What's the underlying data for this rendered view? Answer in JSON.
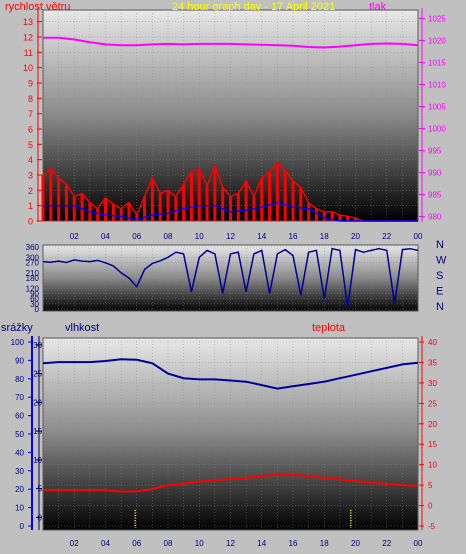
{
  "chart_data": [
    {
      "type": "line",
      "title": "24 hour graph day - 17 April 2021",
      "left_axis_label": "rychlost větru",
      "right_axis_label": "tlak",
      "x_tick_labels": [
        "02",
        "04",
        "06",
        "08",
        "10",
        "12",
        "14",
        "16",
        "18",
        "20",
        "22",
        "00"
      ],
      "left_ticks": [
        0,
        1,
        2,
        3,
        4,
        5,
        6,
        7,
        8,
        9,
        10,
        11,
        12,
        13
      ],
      "right_ticks": [
        980,
        985,
        990,
        995,
        1000,
        1005,
        1010,
        1015,
        1020,
        1025
      ],
      "left_ylim": [
        0,
        13.5
      ],
      "right_ylim": [
        979,
        1026
      ],
      "x_range_hours": [
        0,
        24
      ],
      "grid": true,
      "colors": {
        "pressure": "#ff00ff",
        "gust": "#ff0000",
        "avg": "#0000ff",
        "left_axis": "#ff0000",
        "right_axis": "#ff00ff",
        "title": "#ffff00"
      },
      "series": [
        {
          "key": "pressure",
          "x": [
            0,
            1,
            2,
            3,
            4,
            5,
            6,
            7,
            8,
            9,
            10,
            11,
            12,
            13,
            14,
            15,
            16,
            17,
            18,
            19,
            20,
            21,
            22,
            23,
            24
          ],
          "values": [
            1020.6,
            1020.6,
            1020.2,
            1019.6,
            1019.1,
            1018.9,
            1018.9,
            1019.1,
            1019.2,
            1019.1,
            1019.2,
            1019.2,
            1019.2,
            1019.1,
            1019.0,
            1018.9,
            1018.8,
            1018.5,
            1018.4,
            1018.6,
            1018.9,
            1019.2,
            1019.3,
            1019.2,
            1018.9
          ]
        },
        {
          "key": "gust",
          "x": [
            0,
            0.5,
            1,
            1.5,
            2,
            2.5,
            3,
            3.5,
            4,
            4.5,
            5,
            5.5,
            6,
            6.5,
            7,
            7.5,
            8,
            8.5,
            9,
            9.5,
            10,
            10.5,
            11,
            11.5,
            12,
            12.5,
            13,
            13.5,
            14,
            14.5,
            15,
            15.5,
            16,
            16.5,
            17,
            17.5,
            18,
            18.5,
            19,
            19.5,
            20,
            20.5,
            21,
            21.5,
            22,
            22.5,
            23,
            23.5,
            24
          ],
          "values": [
            3,
            3.4,
            2.8,
            2.4,
            1.6,
            1.8,
            1.2,
            0.8,
            1.5,
            1.1,
            0.8,
            1.2,
            0.4,
            1.6,
            2.8,
            1.8,
            2,
            1.6,
            2.4,
            3.2,
            3.4,
            2.3,
            3.6,
            2.2,
            1.6,
            1.8,
            2.6,
            1.6,
            2.8,
            3.2,
            3.8,
            3.3,
            2.6,
            2.2,
            1.2,
            0.8,
            0.6,
            0.6,
            0.4,
            0.3,
            0.2,
            0,
            0,
            0,
            0,
            0,
            0,
            0,
            0
          ]
        },
        {
          "key": "avg",
          "x": [
            0,
            1,
            2,
            3,
            4,
            5,
            6,
            7,
            8,
            9,
            10,
            11,
            12,
            13,
            14,
            15,
            16,
            17,
            18,
            19,
            20,
            21,
            22,
            23,
            24
          ],
          "values": [
            1,
            1,
            1,
            0.6,
            0.4,
            0.3,
            0.1,
            0.4,
            0.5,
            0.8,
            1,
            1,
            0.6,
            0.7,
            0.9,
            1.2,
            0.9,
            0.8,
            0.2,
            0,
            0,
            0,
            0,
            0,
            0
          ]
        }
      ]
    },
    {
      "type": "line",
      "right_labels": [
        "N",
        "W",
        "S",
        "E",
        "N"
      ],
      "left_ticks": [
        0,
        30,
        60,
        90,
        120,
        180,
        210,
        270,
        300,
        360
      ],
      "ylim": [
        0,
        360
      ],
      "x_range_hours": [
        0,
        24
      ],
      "colors": {
        "direction": "#000099"
      },
      "series": [
        {
          "key": "direction",
          "x": [
            0,
            0.5,
            1,
            1.5,
            2,
            2.5,
            3,
            3.5,
            4,
            4.5,
            5,
            5.5,
            6,
            6.5,
            7,
            7.5,
            8,
            8.5,
            9,
            9.5,
            10,
            10.5,
            11,
            11.5,
            12,
            12.5,
            13,
            13.5,
            14,
            14.5,
            15,
            15.5,
            16,
            16.5,
            17,
            17.5,
            18,
            18.5,
            19,
            19.5,
            20,
            20.5,
            21,
            21.5,
            22,
            22.5,
            23,
            23.5,
            24
          ],
          "values": [
            275,
            272,
            278,
            270,
            285,
            278,
            275,
            282,
            268,
            250,
            210,
            180,
            130,
            230,
            265,
            280,
            300,
            330,
            320,
            100,
            300,
            340,
            320,
            90,
            320,
            330,
            100,
            320,
            340,
            90,
            320,
            345,
            310,
            80,
            330,
            340,
            60,
            350,
            340,
            10,
            345,
            330,
            340,
            350,
            340,
            30,
            345,
            350,
            340
          ]
        }
      ]
    },
    {
      "type": "line",
      "left_axis_label": "srážky",
      "middle_axis_label": "vlhkost",
      "right_axis_label": "teplota",
      "x_tick_labels": [
        "02",
        "04",
        "06",
        "08",
        "10",
        "12",
        "14",
        "16",
        "18",
        "20",
        "22",
        "00"
      ],
      "rain_ticks": [
        0,
        10,
        20,
        30,
        40,
        50,
        60,
        70,
        80,
        90,
        100
      ],
      "humidity_ticks": [
        0,
        5,
        10,
        15,
        20,
        25,
        30
      ],
      "temp_ticks": [
        -5,
        0,
        5,
        10,
        15,
        20,
        25,
        30,
        35,
        40
      ],
      "humidity_ylim": [
        -1.5,
        30.5
      ],
      "temp_ylim": [
        -5,
        40
      ],
      "x_range_hours": [
        0,
        24
      ],
      "grid": true,
      "colors": {
        "humidity": "#000099",
        "temperature": "#ff0000",
        "rain": "#ffff00",
        "rain_axis": "#0000ff",
        "humidity_axis": "#000066",
        "temp_axis": "#ff0000"
      },
      "series": [
        {
          "key": "humidity",
          "x": [
            0,
            1,
            2,
            3,
            4,
            5,
            6,
            7,
            8,
            9,
            10,
            11,
            12,
            13,
            14,
            15,
            16,
            17,
            18,
            19,
            20,
            21,
            22,
            23,
            24
          ],
          "values": [
            26.8,
            27,
            27,
            27,
            27.2,
            27.5,
            27.4,
            26.8,
            25,
            24.2,
            24,
            24,
            23.8,
            23.6,
            23,
            22.4,
            22.8,
            23.2,
            23.6,
            24.2,
            24.8,
            25.4,
            26,
            26.6,
            26.9
          ]
        },
        {
          "key": "temperature",
          "x": [
            0,
            1,
            2,
            3,
            4,
            5,
            6,
            7,
            8,
            9,
            10,
            11,
            12,
            13,
            14,
            15,
            16,
            17,
            18,
            19,
            20,
            21,
            22,
            23,
            24
          ],
          "values": [
            3.8,
            3.8,
            3.8,
            3.8,
            3.8,
            3.4,
            3.5,
            4,
            5,
            5.4,
            5.8,
            6.2,
            6.5,
            6.8,
            7.2,
            7.6,
            7.5,
            7.2,
            6.8,
            6.4,
            6,
            5.6,
            5.3,
            5,
            4.8
          ]
        },
        {
          "key": "rain",
          "x": [
            5.9,
            19.7
          ],
          "values": [
            10,
            10
          ]
        }
      ]
    }
  ]
}
